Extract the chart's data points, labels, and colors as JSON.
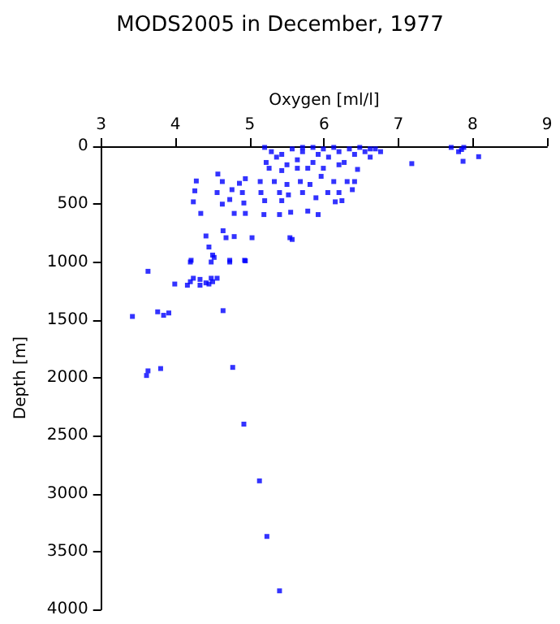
{
  "chart_data": {
    "type": "scatter",
    "title": "MODS2005 in December, 1977",
    "xlabel": "Oxygen [ml/l]",
    "ylabel": "Depth [m]",
    "marker": "square",
    "grid": false,
    "xlim": [
      3,
      9
    ],
    "xticks": [
      3,
      4,
      5,
      6,
      7,
      8,
      9
    ],
    "ylim": [
      4000,
      0
    ],
    "yticks": [
      0,
      500,
      1000,
      1500,
      2000,
      2500,
      3000,
      3500,
      4000
    ],
    "series": [
      {
        "color": "#0000ff",
        "x": [
          5.13,
          5.23,
          5.4,
          4.92,
          4.77,
          3.61,
          3.63,
          3.8,
          3.42,
          3.76,
          3.84,
          3.91,
          4.64,
          3.63,
          3.99,
          4.16,
          4.2,
          4.24,
          4.33,
          4.33,
          4.41,
          4.45,
          4.48,
          4.5,
          4.56,
          4.2,
          4.48,
          4.73,
          4.94,
          7.71,
          7.81,
          7.85,
          7.87,
          8.08,
          7.18,
          7.88,
          5.2,
          5.29,
          5.36,
          5.22,
          5.26,
          5.43,
          5.5,
          5.57,
          5.64,
          5.71,
          5.78,
          5.85,
          5.92,
          5.99,
          6.06,
          6.13,
          6.2,
          6.27,
          6.34,
          6.41,
          6.48,
          6.55,
          6.62,
          6.69,
          6.76,
          5.99,
          6.2,
          6.45,
          5.43,
          5.64,
          5.85,
          6.62,
          5.71,
          4.28,
          4.26,
          4.24,
          4.34,
          4.57,
          4.63,
          4.56,
          4.76,
          4.73,
          4.79,
          4.63,
          4.86,
          4.94,
          4.9,
          4.92,
          4.94,
          5.14,
          5.15,
          5.2,
          5.19,
          5.33,
          5.4,
          5.43,
          5.4,
          5.5,
          5.52,
          5.55,
          5.68,
          5.71,
          5.78,
          5.81,
          5.89,
          5.92,
          5.96,
          6.13,
          6.2,
          6.24,
          6.31,
          6.38,
          6.41,
          6.05,
          6.15,
          4.41,
          4.45,
          4.64,
          4.68,
          4.79,
          5.03,
          5.54,
          5.57,
          4.21,
          4.52,
          4.73,
          4.93,
          4.5
        ],
        "values": [
          2890,
          3370,
          3840,
          2400,
          1910,
          1980,
          1940,
          1920,
          1470,
          1430,
          1460,
          1440,
          1420,
          1080,
          1190,
          1200,
          1170,
          1140,
          1150,
          1200,
          1180,
          1190,
          1140,
          1170,
          1140,
          1000,
          1000,
          1000,
          990,
          10,
          47,
          28,
          130,
          90,
          150,
          10,
          10,
          47,
          94,
          140,
          190,
          70,
          160,
          23,
          117,
          47,
          190,
          10,
          70,
          23,
          94,
          10,
          47,
          140,
          23,
          70,
          10,
          47,
          94,
          23,
          47,
          190,
          160,
          200,
          210,
          190,
          140,
          23,
          10,
          300,
          385,
          480,
          580,
          240,
          305,
          400,
          375,
          460,
          580,
          500,
          320,
          280,
          400,
          490,
          580,
          305,
          400,
          470,
          590,
          305,
          400,
          470,
          590,
          330,
          420,
          570,
          305,
          400,
          560,
          330,
          445,
          590,
          260,
          305,
          400,
          470,
          305,
          375,
          305,
          400,
          480,
          775,
          870,
          730,
          790,
          780,
          790,
          790,
          805,
          985,
          960,
          985,
          985,
          940
        ]
      }
    ]
  }
}
